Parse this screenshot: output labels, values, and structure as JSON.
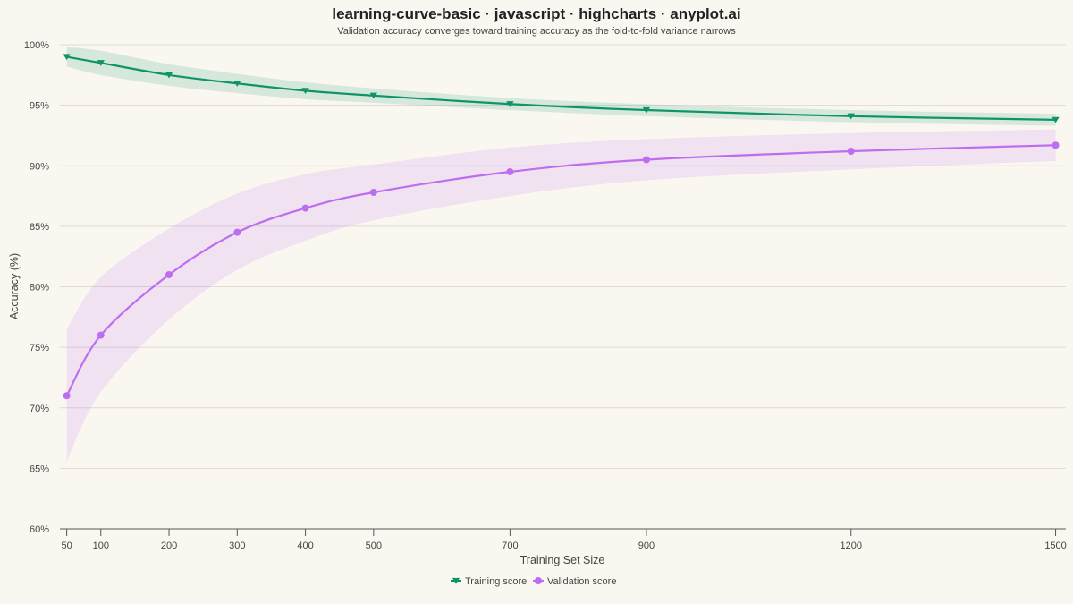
{
  "chart_data": {
    "type": "line",
    "title": "learning-curve-basic · javascript · highcharts · anyplot.ai",
    "subtitle": "Validation accuracy converges toward training accuracy as the fold-to-fold variance narrows",
    "xlabel": "Training Set Size",
    "ylabel": "Accuracy (%)",
    "x": [
      50,
      100,
      200,
      300,
      400,
      500,
      700,
      900,
      1200,
      1500
    ],
    "xlim": [
      40,
      1515
    ],
    "ylim": [
      60,
      100
    ],
    "yticks": [
      60,
      65,
      70,
      75,
      80,
      85,
      90,
      95,
      100
    ],
    "ytick_labels": [
      "60%",
      "65%",
      "70%",
      "75%",
      "80%",
      "85%",
      "90%",
      "95%",
      "100%"
    ],
    "xtick_labels": [
      "50",
      "100",
      "200",
      "300",
      "400",
      "500",
      "700",
      "900",
      "1200",
      "1500"
    ],
    "grid": true,
    "legend_position": "bottom-center",
    "series": [
      {
        "name": "Training score",
        "color": "#0f9468",
        "band_color": "#0f9468",
        "marker": "triangle-down",
        "values": [
          99.0,
          98.5,
          97.5,
          96.8,
          96.2,
          95.8,
          95.1,
          94.6,
          94.1,
          93.8
        ],
        "lower": [
          98.2,
          97.5,
          96.6,
          96.0,
          95.5,
          95.2,
          94.6,
          94.1,
          93.6,
          93.3
        ],
        "upper": [
          99.8,
          99.5,
          98.4,
          97.6,
          96.9,
          96.4,
          95.6,
          95.1,
          94.6,
          94.3
        ]
      },
      {
        "name": "Validation score",
        "color": "#bd6ef0",
        "band_color": "#bd6ef0",
        "marker": "circle",
        "values": [
          71.0,
          76.0,
          81.0,
          84.5,
          86.5,
          87.8,
          89.5,
          90.5,
          91.2,
          91.7
        ],
        "lower": [
          65.6,
          71.3,
          77.3,
          81.4,
          83.8,
          85.5,
          87.5,
          88.8,
          89.7,
          90.4
        ],
        "upper": [
          76.5,
          80.8,
          84.8,
          87.7,
          89.3,
          90.1,
          91.5,
          92.2,
          92.7,
          93.0
        ]
      }
    ]
  }
}
